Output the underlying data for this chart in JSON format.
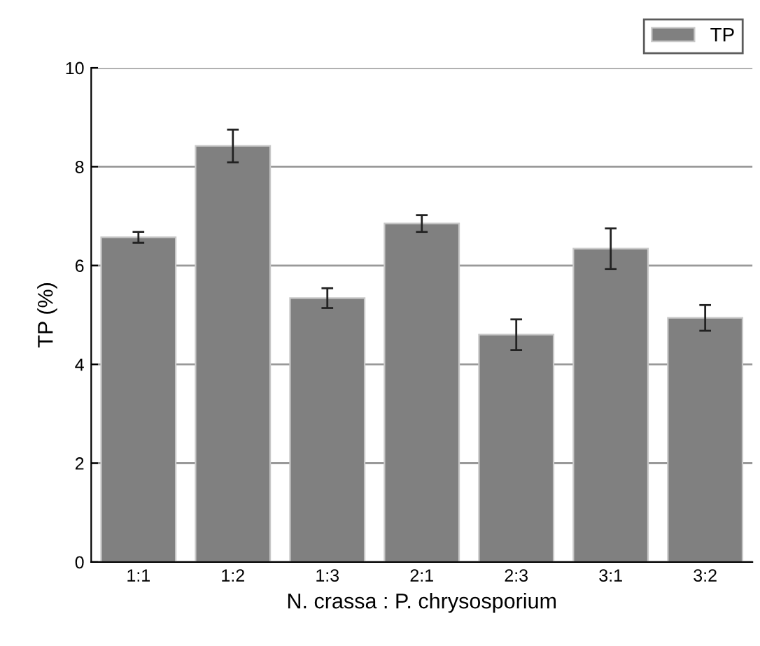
{
  "chart_data": {
    "type": "bar",
    "xlabel": "N. crassa : P. chrysosporium",
    "ylabel": "TP (%)",
    "categories": [
      "1:1",
      "1:2",
      "1:3",
      "2:1",
      "2:3",
      "3:1",
      "3:2"
    ],
    "series": [
      {
        "name": "TP",
        "color": "#808080",
        "values": [
          6.57,
          8.42,
          5.34,
          6.85,
          4.6,
          6.34,
          4.94
        ],
        "errors": [
          0.11,
          0.33,
          0.2,
          0.17,
          0.31,
          0.41,
          0.26
        ]
      }
    ],
    "ylim": [
      0,
      10
    ],
    "yticks": [
      0,
      2,
      4,
      6,
      8,
      10
    ],
    "grid": "y",
    "legend": "top right"
  }
}
